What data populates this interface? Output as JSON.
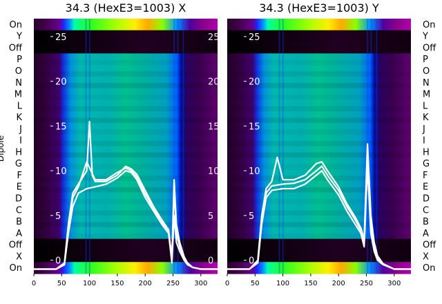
{
  "chart_data": [
    {
      "type": "heatmap",
      "title": "34.3 (HexE3=1003) X",
      "ylabel": "Dipole",
      "row_labels": [
        "On",
        "Y",
        "Off",
        "P",
        "O",
        "N",
        "M",
        "L",
        "K",
        "J",
        "I",
        "H",
        "G",
        "F",
        "E",
        "D",
        "C",
        "B",
        "A",
        "Off",
        "X",
        "On"
      ],
      "x_ticks": [
        0,
        50,
        100,
        150,
        200,
        250,
        300
      ],
      "overlay_ticks": [
        0,
        5,
        10,
        15,
        20,
        25
      ],
      "xlim": [
        0,
        330
      ],
      "overlay_ylim": [
        -1.5,
        27
      ],
      "colormap": "nipy_spectral",
      "overlay_line_color": "#ffffff",
      "series": [
        {
          "x": [
            0,
            40,
            55,
            62,
            70,
            80,
            95,
            110,
            130,
            150,
            165,
            175,
            185,
            200,
            215,
            230,
            242,
            248,
            252,
            256,
            262,
            270,
            276,
            285,
            300,
            320,
            330
          ],
          "y": [
            -1,
            -1,
            -0.5,
            3,
            6,
            7.5,
            8,
            8.2,
            8.5,
            9.2,
            10,
            9.8,
            9,
            7,
            5.5,
            4,
            3,
            -0.3,
            5,
            2,
            1,
            0,
            -0.5,
            -0.8,
            -1,
            -1,
            -1
          ]
        },
        {
          "x": [
            0,
            40,
            55,
            62,
            70,
            80,
            95,
            110,
            130,
            150,
            165,
            175,
            185,
            200,
            215,
            230,
            242,
            248,
            252,
            256,
            262,
            270,
            276,
            285,
            300,
            320,
            330
          ],
          "y": [
            -1,
            -1,
            -0.5,
            3.5,
            7,
            8.2,
            11,
            9,
            9,
            9.8,
            10.3,
            10,
            9.3,
            7.4,
            5.8,
            4.3,
            3.2,
            0,
            8,
            3,
            1.5,
            0.2,
            -0.3,
            -0.8,
            -1,
            -1,
            -1
          ]
        },
        {
          "x": [
            0,
            40,
            55,
            62,
            70,
            80,
            95,
            100,
            105,
            110,
            130,
            150,
            165,
            175,
            185,
            200,
            215,
            230,
            242,
            248,
            252,
            256,
            262,
            270,
            276,
            285,
            300,
            320,
            330
          ],
          "y": [
            -1,
            -1,
            -0.3,
            4,
            7.5,
            8.5,
            10,
            15.5,
            9.5,
            8.8,
            8.8,
            9.5,
            10.5,
            10.2,
            9.6,
            7.8,
            6,
            4.5,
            3.4,
            0.2,
            9,
            4,
            2,
            0.4,
            -0.3,
            -0.8,
            -1,
            -1,
            -1
          ]
        }
      ]
    },
    {
      "type": "heatmap",
      "title": "34.3 (HexE3=1003) Y",
      "ylabel": "",
      "row_labels": [
        "On",
        "Y",
        "Off",
        "P",
        "O",
        "N",
        "M",
        "L",
        "K",
        "J",
        "I",
        "H",
        "G",
        "F",
        "E",
        "D",
        "C",
        "B",
        "A",
        "Off",
        "X",
        "On"
      ],
      "x_ticks": [
        0,
        50,
        100,
        150,
        200,
        250,
        300
      ],
      "overlay_ticks": [
        0,
        5,
        10,
        15,
        20,
        25
      ],
      "xlim": [
        0,
        330
      ],
      "overlay_ylim": [
        -1.5,
        27
      ],
      "colormap": "nipy_spectral",
      "overlay_line_color": "#ffffff",
      "series": [
        {
          "x": [
            0,
            40,
            55,
            62,
            70,
            80,
            100,
            120,
            140,
            160,
            170,
            180,
            200,
            215,
            230,
            240,
            246,
            252,
            258,
            264,
            270,
            280,
            300,
            320,
            330
          ],
          "y": [
            -1,
            -1,
            -0.3,
            4,
            7,
            7.8,
            8,
            8,
            8.5,
            9.5,
            10,
            9,
            7.3,
            5.5,
            4,
            3,
            1.5,
            10.5,
            3,
            1,
            0,
            -0.5,
            -1,
            -1,
            -1
          ]
        },
        {
          "x": [
            0,
            40,
            55,
            62,
            70,
            80,
            100,
            120,
            140,
            160,
            170,
            180,
            200,
            215,
            230,
            240,
            246,
            252,
            258,
            264,
            270,
            280,
            300,
            320,
            330
          ],
          "y": [
            -1,
            -1,
            -0.2,
            4.5,
            7.5,
            8.3,
            8.5,
            8.6,
            9,
            10,
            10.5,
            9.5,
            7.8,
            6,
            4.5,
            3.3,
            2,
            12,
            4,
            1.5,
            0.2,
            -0.4,
            -1,
            -1,
            -1
          ]
        },
        {
          "x": [
            0,
            40,
            55,
            62,
            70,
            80,
            90,
            100,
            120,
            140,
            160,
            170,
            180,
            200,
            215,
            230,
            240,
            246,
            252,
            258,
            264,
            270,
            280,
            300,
            320,
            330
          ],
          "y": [
            -1,
            -1,
            0,
            5,
            8,
            8.8,
            11.5,
            9,
            9,
            9.5,
            10.8,
            11,
            10,
            8.2,
            6.3,
            4.8,
            3.6,
            2.3,
            13,
            5,
            2,
            0.5,
            -0.4,
            -1,
            -1,
            -1
          ]
        }
      ]
    }
  ]
}
